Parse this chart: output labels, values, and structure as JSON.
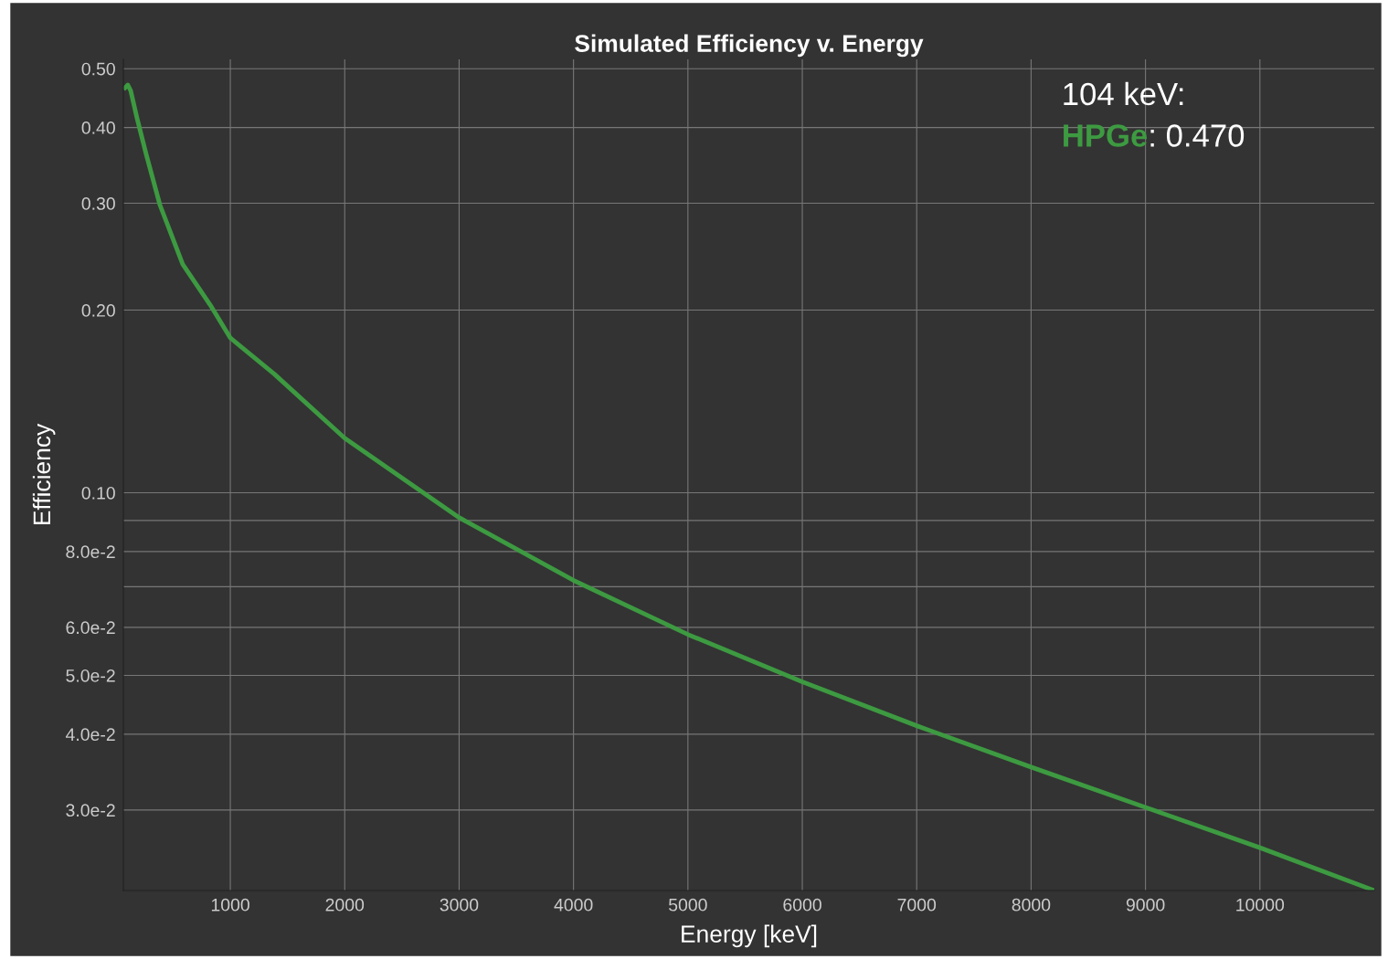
{
  "chart_data": {
    "type": "line",
    "title": "Simulated Efficiency v. Energy",
    "xlabel": "Energy [keV]",
    "ylabel": "Efficiency",
    "annotations": [
      "104 keV:",
      ": 0.470"
    ],
    "series": [
      {
        "name": "HPGe",
        "color": "#3d9a41",
        "x": [
          80,
          104,
          129,
          185,
          265,
          385,
          584,
          824,
          1000,
          1383,
          2000,
          3000,
          4000,
          5000,
          6000,
          7000,
          8000,
          9000,
          10000,
          11000
        ],
        "values": [
          0.465,
          0.47,
          0.46,
          0.414,
          0.361,
          0.298,
          0.238,
          0.204,
          0.18,
          0.157,
          0.123,
          0.091,
          0.0717,
          0.0584,
          0.0488,
          0.0413,
          0.0353,
          0.0303,
          0.026,
          0.0221
        ]
      }
    ],
    "log": "y",
    "grid": true,
    "legend": false,
    "marker": "none",
    "line_style": "solid",
    "xlim": [
      65,
      11000
    ],
    "ylim": [
      0.0221,
      0.518
    ],
    "xticks": [
      1000,
      2000,
      3000,
      4000,
      5000,
      6000,
      7000,
      8000,
      9000,
      10000
    ],
    "yticks": [
      {
        "value": 0.03,
        "label": "3.0e-2"
      },
      {
        "value": 0.04,
        "label": "4.0e-2"
      },
      {
        "value": 0.05,
        "label": "5.0e-2"
      },
      {
        "value": 0.06,
        "label": "6.0e-2"
      },
      {
        "value": 0.07,
        "label": null
      },
      {
        "value": 0.08,
        "label": "8.0e-2"
      },
      {
        "value": 0.09,
        "label": null
      },
      {
        "value": 0.1,
        "label": "0.10"
      },
      {
        "value": 0.2,
        "label": "0.20"
      },
      {
        "value": 0.3,
        "label": "0.30"
      },
      {
        "value": 0.4,
        "label": "0.40"
      },
      {
        "value": 0.5,
        "label": "0.50"
      }
    ]
  }
}
